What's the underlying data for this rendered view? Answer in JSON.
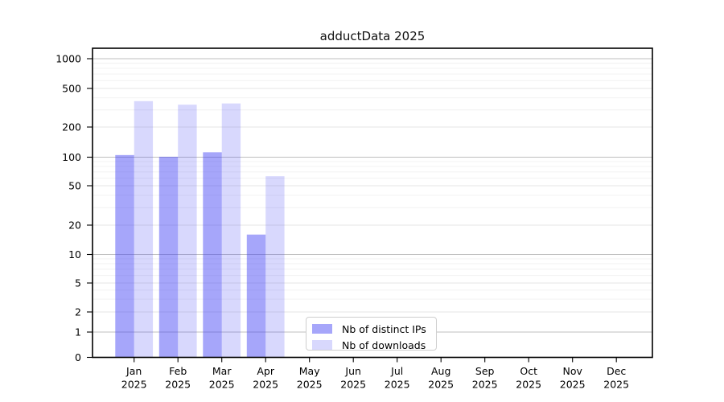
{
  "chart_data": {
    "type": "bar",
    "title": "adductData 2025",
    "categories_month": [
      "Jan",
      "Feb",
      "Mar",
      "Apr",
      "May",
      "Jun",
      "Jul",
      "Aug",
      "Sep",
      "Oct",
      "Nov",
      "Dec"
    ],
    "categories_year": "2025",
    "series": [
      {
        "name": "Nb of distinct IPs",
        "color": "rgba(70,70,245,0.48)",
        "values": [
          105,
          101,
          112,
          16,
          0,
          0,
          0,
          0,
          0,
          0,
          0,
          0
        ]
      },
      {
        "name": "Nb of downloads",
        "color": "rgba(70,70,245,0.21)",
        "values": [
          370,
          340,
          350,
          63,
          0,
          0,
          0,
          0,
          0,
          0,
          0,
          0
        ]
      }
    ],
    "xlabel": "",
    "ylabel": "",
    "y_axis": {
      "scale": "symlog",
      "ticks": [
        0,
        1,
        2,
        5,
        10,
        20,
        50,
        100,
        200,
        500,
        1000
      ],
      "minor_ticks": [
        3,
        4,
        6,
        7,
        8,
        9,
        30,
        40,
        60,
        70,
        80,
        90,
        300,
        400,
        600,
        700,
        800,
        900
      ],
      "range": [
        0,
        1200
      ]
    },
    "grid": true,
    "legend_position": "lower-center"
  },
  "colors": {
    "bar_base": "#4646f5",
    "decade_grid": "#bfbfbf",
    "major_grid": "#e5e5e5",
    "minor_grid": "#f0f0f0",
    "axis": "#000000",
    "legend_border": "#cfcfcf"
  }
}
